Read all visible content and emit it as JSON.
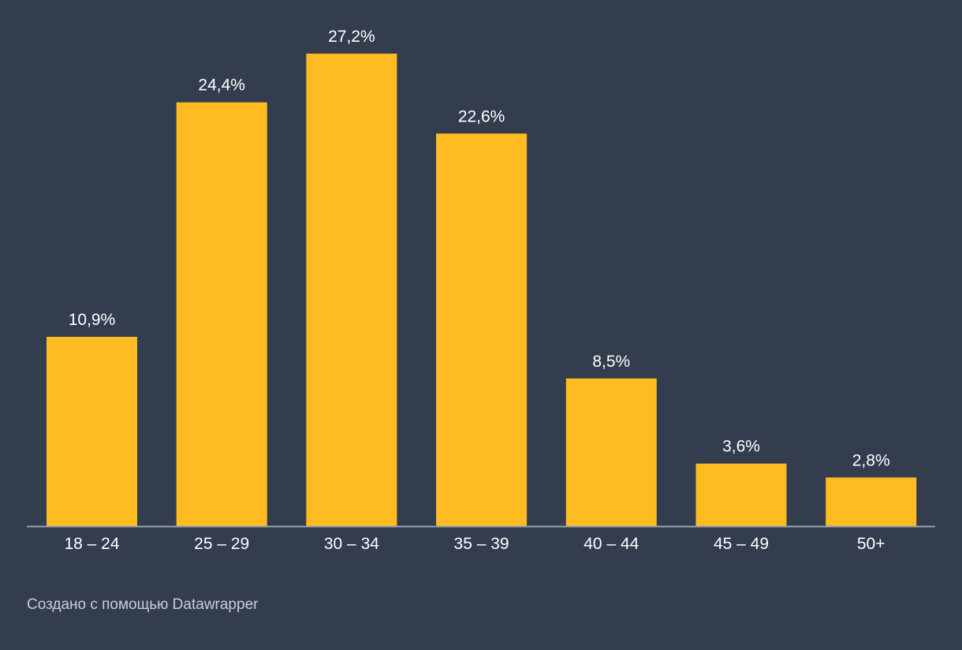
{
  "colors": {
    "background": "#333d4e",
    "bar": "#ffbc22",
    "text": "#ffffff",
    "axis": "#9aa1ab",
    "credit": "#c9ced6"
  },
  "chart_data": {
    "type": "bar",
    "categories": [
      "18 – 24",
      "25 – 29",
      "30 – 34",
      "35 – 39",
      "40 – 44",
      "45 – 49",
      "50+"
    ],
    "values": [
      10.9,
      24.4,
      27.2,
      22.6,
      8.5,
      3.6,
      2.8
    ],
    "value_labels": [
      "10,9%",
      "24,4%",
      "27,2%",
      "22,6%",
      "8,5%",
      "3,6%",
      "2,8%"
    ],
    "unit": "%",
    "title": "",
    "xlabel": "",
    "ylabel": "",
    "ylim": [
      0,
      27.2
    ],
    "grid": false,
    "legend": "none"
  },
  "footer": {
    "credit": "Создано с помощью Datawrapper"
  }
}
